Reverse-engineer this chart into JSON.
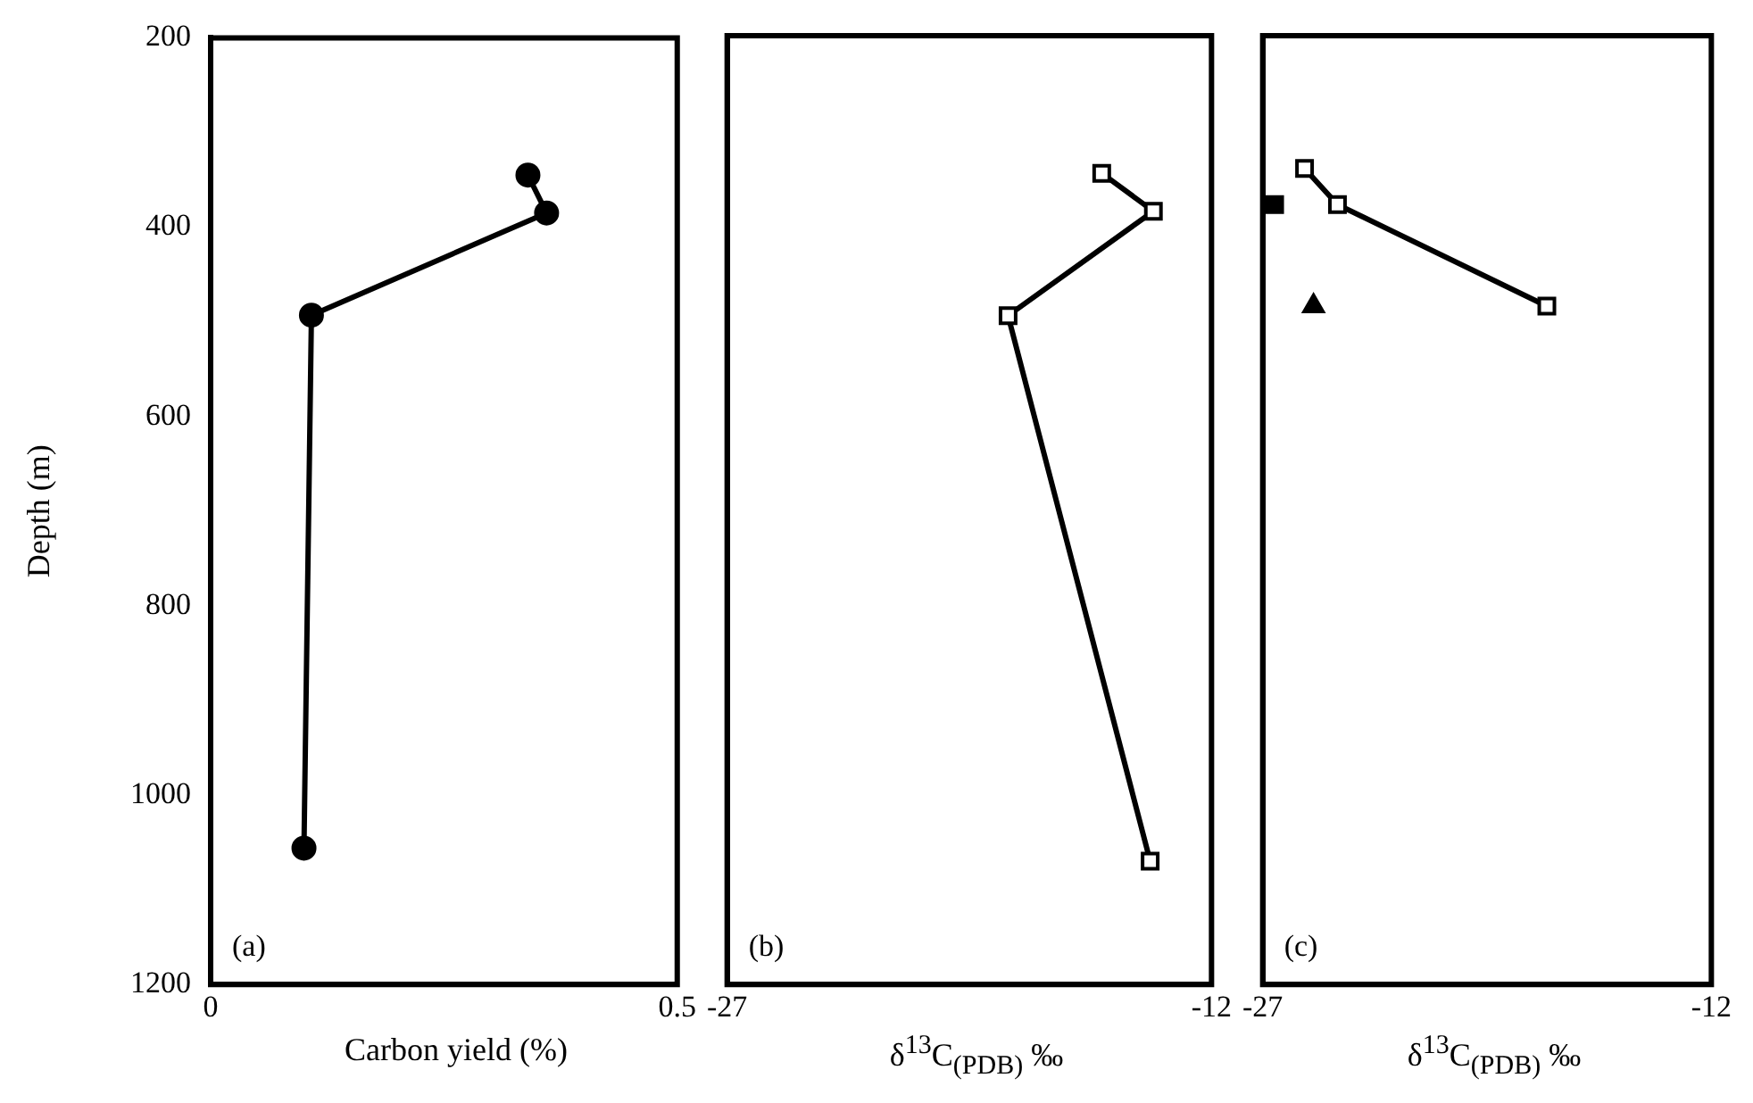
{
  "chart_data": [
    {
      "type": "line",
      "xlabel": "Carbon yield (%)",
      "ylabel": "Depth (m)",
      "annotations": [
        "(a)"
      ],
      "xlim": [
        0,
        0.5
      ],
      "xticks": [
        0,
        0.5
      ],
      "ylim": [
        1200,
        200
      ],
      "yticks": [
        200,
        400,
        600,
        800,
        1000,
        1200
      ],
      "marker": "circle",
      "series": [
        {
          "color": "#000000",
          "x": [
            0.34,
            0.36,
            0.108,
            0.1
          ],
          "values": [
            345,
            385,
            493,
            1056
          ]
        }
      ]
    },
    {
      "type": "line",
      "xlabel": "δ$^{13}$C$_{(PDB)}$ ‰",
      "annotations": [
        "(b)"
      ],
      "xlim": [
        -27,
        -12
      ],
      "xticks": [
        -27,
        -12
      ],
      "ylim": [
        1200,
        200
      ],
      "yticks": [
        200,
        400,
        600,
        800,
        1000,
        1200
      ],
      "tick_labels": "x",
      "marker": "square",
      "series": [
        {
          "color": "#000000",
          "x": [
            -15.4,
            -13.8,
            -18.3,
            -13.9
          ],
          "values": [
            345,
            385,
            495,
            1070
          ]
        }
      ]
    },
    {
      "type": "line",
      "xlabel": "δ$^{13}$C$_{(PDB)}$ ‰",
      "annotations": [
        "(c)"
      ],
      "xlim": [
        -27,
        -12
      ],
      "xticks": [
        -27,
        -12
      ],
      "ylim": [
        1200,
        200
      ],
      "yticks": [
        200,
        400,
        600,
        800,
        1000,
        1200
      ],
      "tick_labels": "x",
      "marker": "square",
      "series": [
        {
          "color": "#000000",
          "x": [
            -25.6,
            -24.5,
            -17.5
          ],
          "values": [
            340,
            378,
            485
          ]
        },
        {
          "type": "scatter",
          "color": "#000000",
          "x": [
            -26.6
          ],
          "values": [
            378
          ]
        },
        {
          "type": "scatter",
          "color": "#000000",
          "marker": "triangle",
          "x": [
            -25.3
          ],
          "values": [
            485
          ]
        }
      ]
    }
  ]
}
